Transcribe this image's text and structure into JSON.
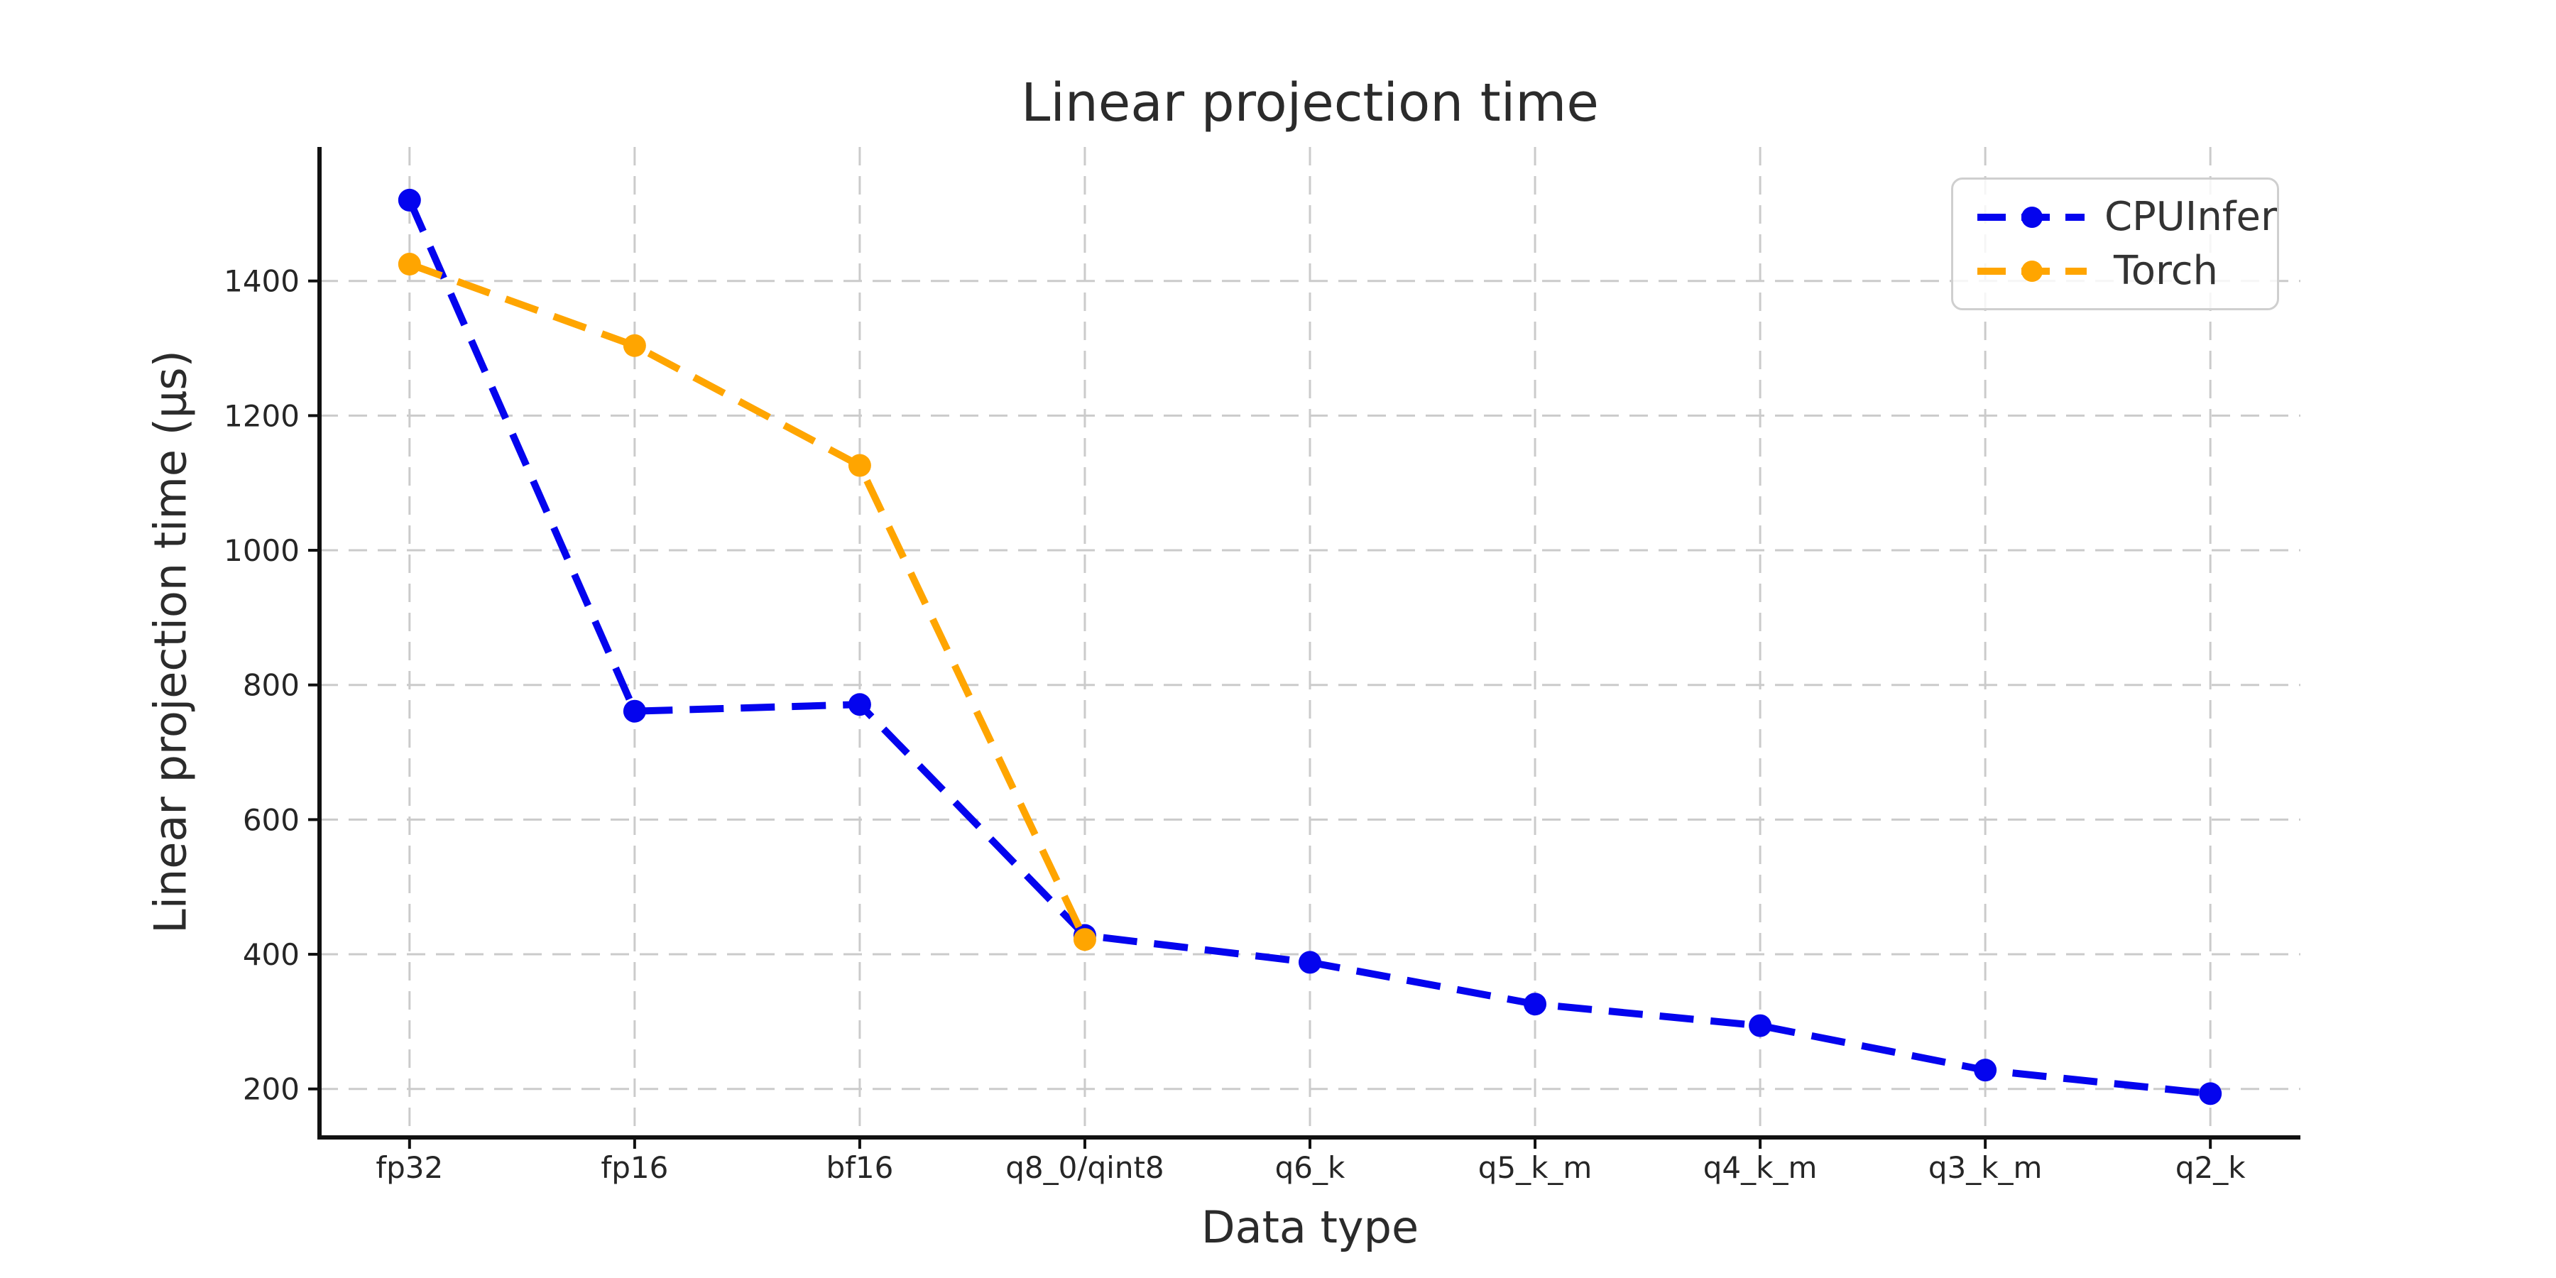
{
  "figure": {
    "background": "#ffffff"
  },
  "chart_data": {
    "type": "line",
    "title": "Linear projection time",
    "xlabel": "Data type",
    "ylabel": "Linear projection time (μs)",
    "categories": [
      "fp32",
      "fp16",
      "bf16",
      "q8_0/qint8",
      "q6_k",
      "q5_k_m",
      "q4_k_m",
      "q3_k_m",
      "q2_k"
    ],
    "series": [
      {
        "name": "CPUInfer",
        "color": "#0404ee",
        "linestyle": "dashed",
        "marker": "circle",
        "values": [
          1520,
          761,
          771,
          428,
          388,
          326,
          294,
          228,
          193
        ]
      },
      {
        "name": "Torch",
        "color": "#ffa500",
        "linestyle": "dashed",
        "marker": "circle",
        "values": [
          1425,
          1304,
          1126,
          422,
          null,
          null,
          null,
          null,
          null
        ]
      }
    ],
    "yticks": [
      200,
      400,
      600,
      800,
      1000,
      1200,
      1400
    ],
    "ylim": [
      128,
      1599
    ],
    "grid": {
      "visible": true,
      "style": "dashed",
      "color": "#cbcbcb",
      "axis": "both"
    },
    "legend": {
      "position": "upper right",
      "entries": [
        "CPUInfer",
        "Torch"
      ]
    }
  }
}
